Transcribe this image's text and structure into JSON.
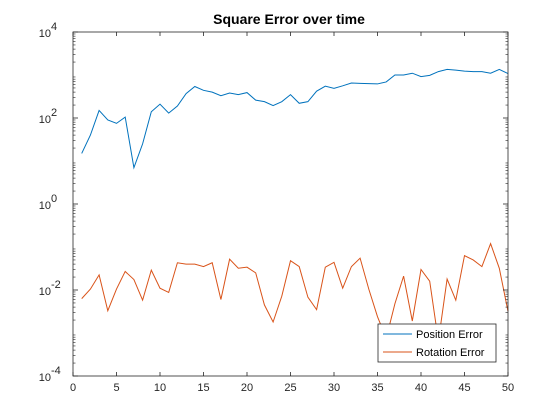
{
  "chart_data": {
    "type": "line",
    "title": "Square Error over time",
    "xlabel": "",
    "ylabel": "",
    "xlim": [
      0,
      50
    ],
    "ylim_log10": [
      -4,
      4
    ],
    "yscale": "log",
    "grid": false,
    "legend_location": "bottom-right",
    "x_ticks": [
      0,
      5,
      10,
      15,
      20,
      25,
      30,
      35,
      40,
      45,
      50
    ],
    "x_tick_labels": [
      "0",
      "5",
      "10",
      "15",
      "20",
      "25",
      "30",
      "35",
      "40",
      "45",
      "50"
    ],
    "y_ticks": [
      {
        "base": "10",
        "exp": "-4",
        "log10": -4
      },
      {
        "base": "10",
        "exp": "-2",
        "log10": -2
      },
      {
        "base": "10",
        "exp": "0",
        "log10": 0
      },
      {
        "base": "10",
        "exp": "2",
        "log10": 2
      },
      {
        "base": "10",
        "exp": "4",
        "log10": 4
      }
    ],
    "x": [
      1,
      2,
      3,
      4,
      5,
      6,
      7,
      8,
      9,
      10,
      11,
      12,
      13,
      14,
      15,
      16,
      17,
      18,
      19,
      20,
      21,
      22,
      23,
      24,
      25,
      26,
      27,
      28,
      29,
      30,
      31,
      32,
      33,
      34,
      35,
      36,
      37,
      38,
      39,
      40,
      41,
      42,
      43,
      44,
      45,
      46,
      47,
      48,
      49,
      50
    ],
    "series": [
      {
        "name": "Position Error",
        "color": "#0072BD",
        "values": [
          15,
          40,
          150,
          90,
          75,
          105,
          7,
          25,
          140,
          210,
          130,
          190,
          370,
          540,
          440,
          400,
          330,
          380,
          350,
          390,
          260,
          240,
          195,
          240,
          350,
          220,
          240,
          420,
          550,
          490,
          560,
          650,
          640,
          630,
          620,
          690,
          1000,
          1000,
          1100,
          920,
          980,
          1200,
          1350,
          1300,
          1230,
          1200,
          1200,
          1100,
          1350,
          1080
        ]
      },
      {
        "name": "Rotation Error",
        "color": "#D95319",
        "values": [
          0.0063,
          0.0105,
          0.0225,
          0.0033,
          0.0105,
          0.027,
          0.0175,
          0.0058,
          0.029,
          0.011,
          0.0088,
          0.043,
          0.04,
          0.04,
          0.035,
          0.043,
          0.006,
          0.052,
          0.032,
          0.034,
          0.025,
          0.0045,
          0.0018,
          0.0072,
          0.048,
          0.035,
          0.0068,
          0.0035,
          0.034,
          0.044,
          0.011,
          0.035,
          0.055,
          0.0105,
          0.0024,
          0.00075,
          0.0048,
          0.021,
          0.0019,
          0.03,
          0.016,
          0.00065,
          0.018,
          0.0058,
          0.063,
          0.05,
          0.035,
          0.12,
          0.032,
          0.0032
        ]
      }
    ]
  }
}
